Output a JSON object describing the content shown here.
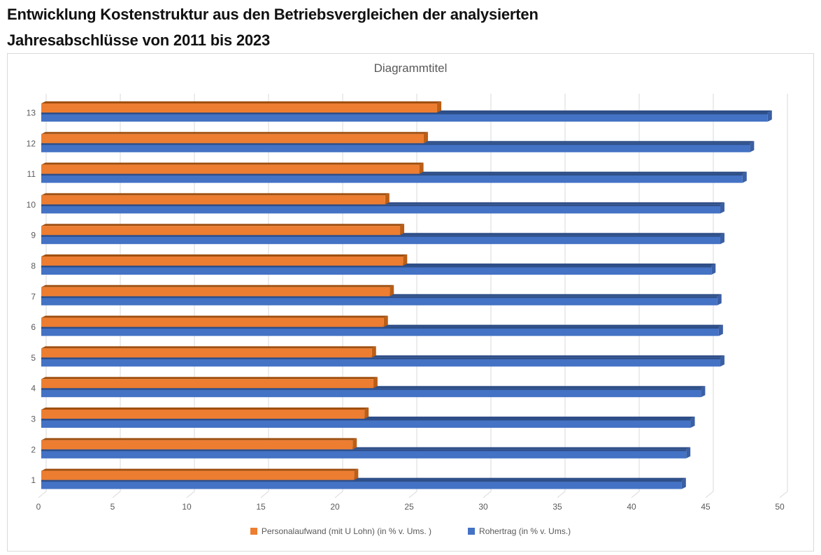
{
  "page_title": {
    "line1": "Entwicklung Kostenstruktur aus den Betriebsvergleichen der analysierten",
    "line2": "Jahresabschlüsse von 2011 bis 2023"
  },
  "chart": {
    "title": "Diagrammtitel"
  },
  "colors": {
    "orange_front": "#ED7D31",
    "orange_top": "#9E4F10",
    "orange_side": "#BC5E15",
    "blue_front": "#4472C4",
    "blue_top": "#2E4E87",
    "blue_side": "#3A5FA5",
    "gridline": "#D9D9D9",
    "axis_text": "#595959"
  },
  "chart_data": {
    "type": "bar",
    "orientation": "horizontal",
    "style": "3d",
    "title": "Diagrammtitel",
    "categories": [
      "1",
      "2",
      "3",
      "4",
      "5",
      "6",
      "7",
      "8",
      "9",
      "10",
      "11",
      "12",
      "13"
    ],
    "series": [
      {
        "name": "Personalaufwand (mit U Lohn) (in % v. Ums. )",
        "color": "#ED7D31",
        "values": [
          21.1,
          21.0,
          21.8,
          22.4,
          22.3,
          23.1,
          23.5,
          24.4,
          24.2,
          23.2,
          25.5,
          25.8,
          26.7
        ]
      },
      {
        "name": "Rohertrag (in % v. Ums.)",
        "color": "#4472C4",
        "values": [
          43.2,
          43.5,
          43.8,
          44.5,
          45.8,
          45.7,
          45.6,
          45.2,
          45.8,
          45.8,
          47.3,
          47.8,
          49.0
        ]
      }
    ],
    "xlabel": "",
    "ylabel": "",
    "xlim": [
      0,
      50
    ],
    "xticks": [
      0,
      5,
      10,
      15,
      20,
      25,
      30,
      35,
      40,
      45,
      50
    ],
    "grid": true,
    "legend_position": "bottom"
  }
}
